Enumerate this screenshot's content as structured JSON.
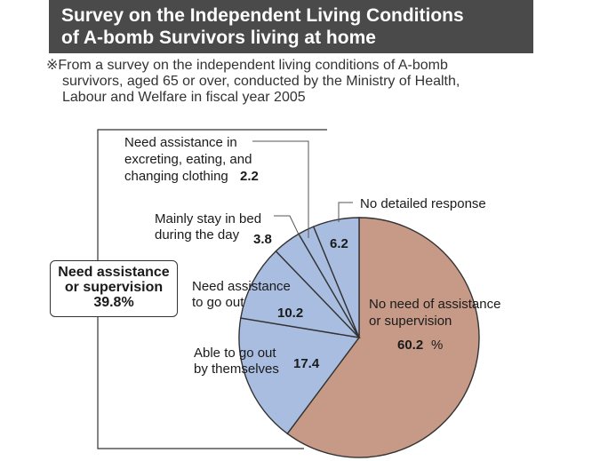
{
  "title": {
    "line1": "Survey on the Independent Living Conditions",
    "line2": "of A-bomb Survivors living at home"
  },
  "note": {
    "line1": "※From a survey on the independent living conditions of A-bomb",
    "line2": "survivors, aged 65 or over, conducted by the Ministry of Health,",
    "line3": "Labour and Welfare in fiscal year 2005"
  },
  "group": {
    "line1": "Need assistance",
    "line2": "or supervision",
    "value": "39.8",
    "unit": "%"
  },
  "colors": {
    "main": "#c79a88",
    "sub": "#a9bde0",
    "outline": "#333333",
    "title_bg": "#4a4a4a"
  },
  "chart_data": {
    "type": "pie",
    "unit": "%",
    "slices": [
      {
        "label": "No need of assistance or supervision",
        "lines": [
          "No need of assistance",
          "or supervision"
        ],
        "value": 60.2,
        "value_label": "60.2",
        "color": "#c79a88"
      },
      {
        "label": "Able to go out by themselves",
        "lines": [
          "Able to go out",
          "by themselves"
        ],
        "value": 17.4,
        "value_label": "17.4",
        "color": "#a9bde0"
      },
      {
        "label": "Need assistance to go out",
        "lines": [
          "Need assistance",
          "to go out"
        ],
        "value": 10.2,
        "value_label": "10.2",
        "color": "#a9bde0"
      },
      {
        "label": "Mainly stay in bed during the day",
        "lines": [
          "Mainly stay in bed",
          "during the day"
        ],
        "value": 3.8,
        "value_label": "3.8",
        "color": "#a9bde0"
      },
      {
        "label": "Need assistance in excreting, eating, and changing clothing",
        "lines": [
          "Need assistance in",
          "excreting, eating, and",
          "changing clothing"
        ],
        "value": 2.2,
        "value_label": "2.2",
        "color": "#a9bde0"
      },
      {
        "label": "No detailed response",
        "lines": [
          "No detailed response"
        ],
        "value": 6.2,
        "value_label": "6.2",
        "color": "#a9bde0"
      }
    ]
  }
}
